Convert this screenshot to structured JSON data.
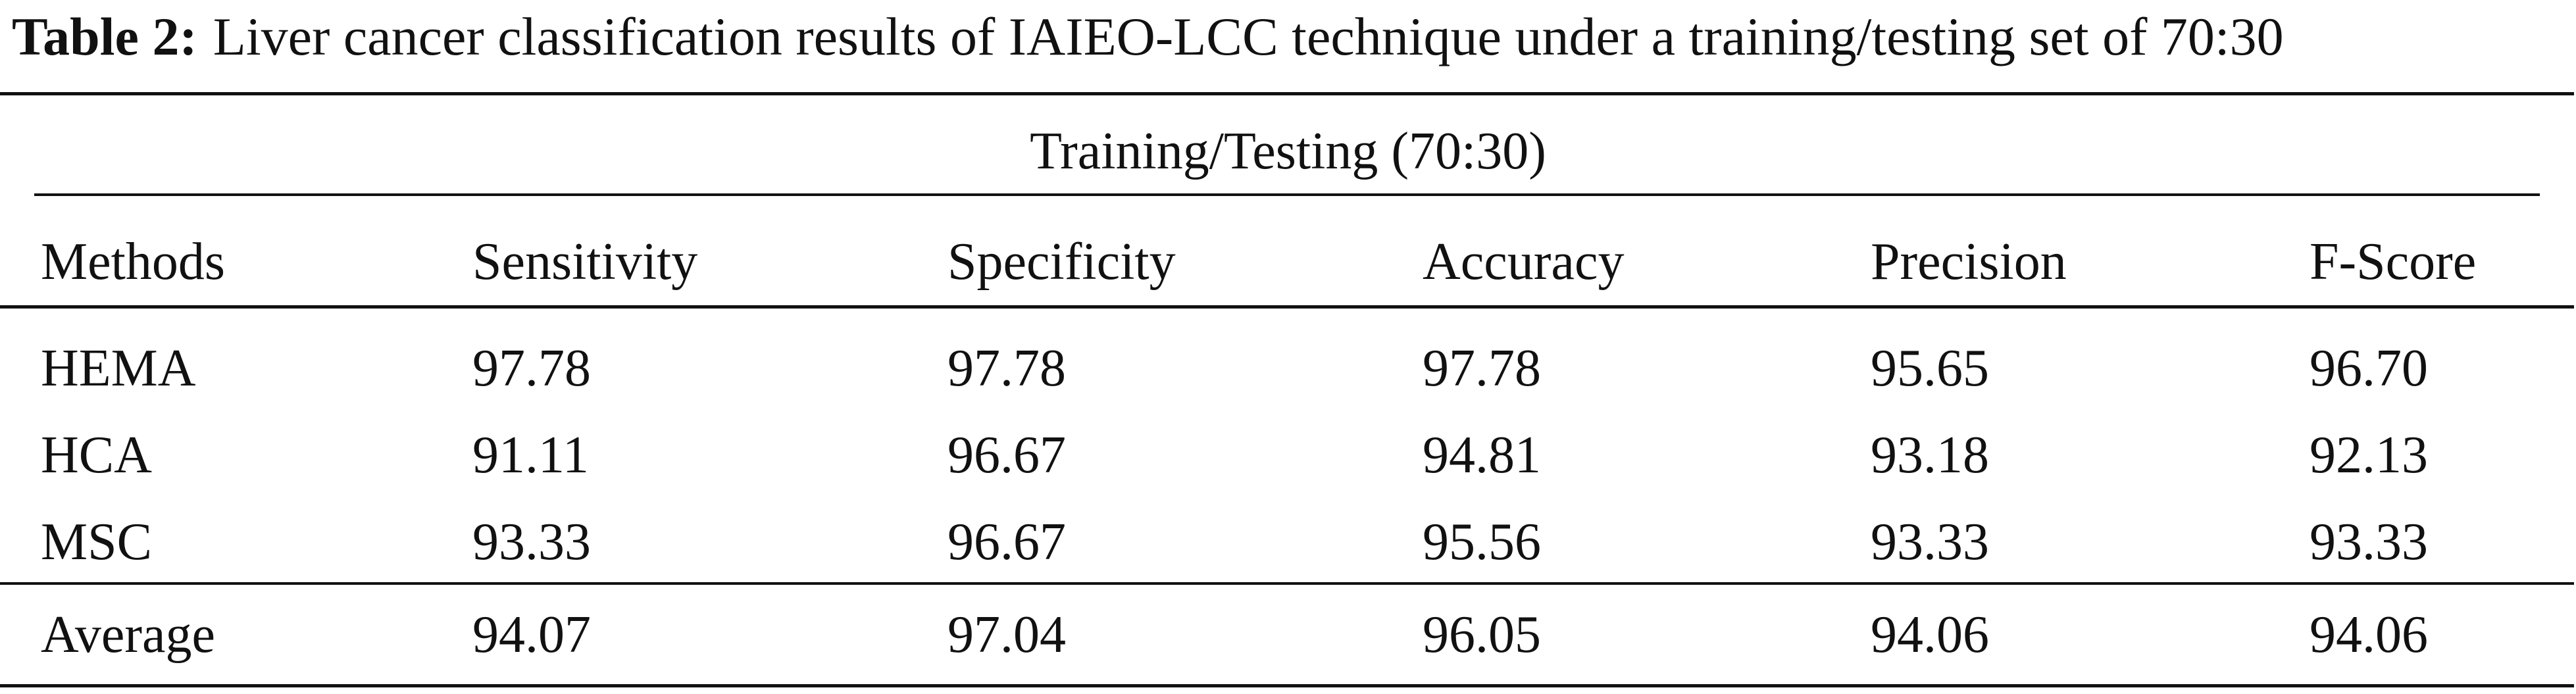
{
  "caption": {
    "label": "Table 2:",
    "text": "Liver cancer classification results of IAIEO-LCC technique under a training/testing set of 70:30"
  },
  "table": {
    "spanner": "Training/Testing (70:30)",
    "columns": [
      "Methods",
      "Sensitivity",
      "Specificity",
      "Accuracy",
      "Precision",
      "F-Score"
    ],
    "rows": [
      [
        "HEMA",
        "97.78",
        "97.78",
        "97.78",
        "95.65",
        "96.70"
      ],
      [
        "HCA",
        "91.11",
        "96.67",
        "94.81",
        "93.18",
        "92.13"
      ],
      [
        "MSC",
        "93.33",
        "96.67",
        "95.56",
        "93.33",
        "93.33"
      ]
    ],
    "average": [
      "Average",
      "94.07",
      "97.04",
      "96.05",
      "94.06",
      "94.06"
    ]
  }
}
